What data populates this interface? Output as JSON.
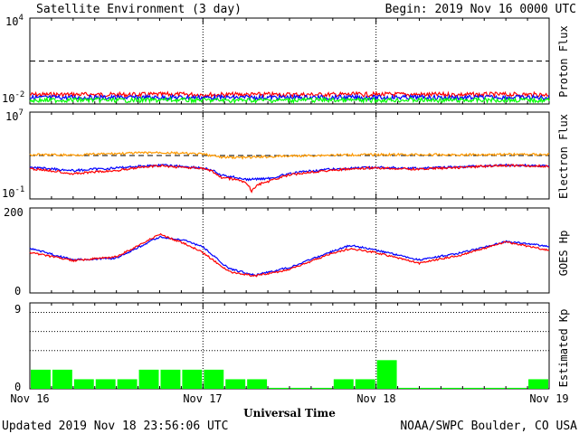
{
  "header": {
    "title": "Satellite Environment (3 day)",
    "begin": "Begin:  2019 Nov 16 0000 UTC"
  },
  "footer": {
    "updated": "Updated 2019 Nov 18 23:56:06 UTC",
    "credit": "NOAA/SWPC Boulder, CO USA",
    "xlabel": "Universal Time"
  },
  "x_ticks": [
    "Nov 16",
    "Nov 17",
    "Nov 18",
    "Nov 19"
  ],
  "colors": {
    "red": "#ff0000",
    "blue": "#0000ff",
    "green": "#00ff00",
    "orange": "#ff9900",
    "bars": "#00ff00",
    "frame": "#000000"
  },
  "chart_data": [
    {
      "type": "line",
      "ylabel": "Proton Flux",
      "ylim": [
        0.01,
        10000
      ],
      "log_scale": true,
      "y_ticks": {
        "top": "10",
        "top_exp": "4",
        "bottom": "10",
        "bottom_exp": "-2"
      },
      "threshold": 10,
      "series": [
        {
          "color": "red",
          "values": [
            0.045,
            0.046,
            0.044,
            0.047,
            0.045,
            0.046,
            0.045,
            0.047,
            0.046,
            0.045,
            0.046,
            0.045
          ]
        },
        {
          "color": "blue",
          "values": [
            0.028,
            0.029,
            0.028,
            0.029,
            0.028,
            0.029,
            0.029,
            0.028,
            0.029,
            0.028,
            0.029,
            0.028
          ]
        },
        {
          "color": "green",
          "values": [
            0.018,
            0.019,
            0.018,
            0.019,
            0.018,
            0.018,
            0.019,
            0.018,
            0.019,
            0.018,
            0.019,
            0.018
          ]
        }
      ],
      "x_days": [
        0,
        0.27,
        0.55,
        0.82,
        1.09,
        1.36,
        1.64,
        1.91,
        2.18,
        2.45,
        2.73,
        3.0
      ]
    },
    {
      "type": "line",
      "ylabel": "Electron Flux",
      "ylim": [
        0.1,
        10000000
      ],
      "log_scale": true,
      "y_ticks": {
        "top": "10",
        "top_exp": "7",
        "bottom": "10",
        "bottom_exp": "-1"
      },
      "threshold": 1000,
      "series": [
        {
          "color": "orange",
          "x": [
            0,
            0.25,
            0.5,
            0.75,
            1.0,
            1.1,
            1.25,
            1.5,
            1.75,
            2.0,
            2.25,
            2.5,
            2.75,
            3.0
          ],
          "values": [
            1200,
            1100,
            1500,
            1900,
            1300,
            700,
            650,
            900,
            1100,
            1200,
            1200,
            1150,
            1300,
            1250
          ]
        },
        {
          "color": "blue",
          "x": [
            0,
            0.25,
            0.5,
            0.75,
            1.0,
            1.1,
            1.25,
            1.4,
            1.5,
            1.75,
            2.0,
            2.25,
            2.5,
            2.75,
            3.0
          ],
          "values": [
            80,
            40,
            70,
            130,
            70,
            15,
            6,
            8,
            20,
            55,
            80,
            65,
            90,
            130,
            110
          ]
        },
        {
          "color": "red",
          "x": [
            0,
            0.25,
            0.5,
            0.75,
            1.0,
            1.1,
            1.25,
            1.28,
            1.4,
            1.5,
            1.75,
            2.0,
            2.25,
            2.5,
            2.75,
            3.0
          ],
          "values": [
            60,
            20,
            40,
            110,
            60,
            10,
            3,
            0.4,
            5,
            15,
            45,
            70,
            55,
            80,
            120,
            100
          ]
        }
      ]
    },
    {
      "type": "line",
      "ylabel": "GOES Hp",
      "ylim": [
        0,
        200
      ],
      "y_ticks": {
        "top": "200",
        "bottom": "0"
      },
      "series": [
        {
          "color": "blue",
          "x": [
            0,
            0.25,
            0.5,
            0.75,
            0.9,
            1.0,
            1.15,
            1.3,
            1.5,
            1.75,
            1.85,
            2.0,
            2.25,
            2.5,
            2.75,
            3.0
          ],
          "values": [
            105,
            78,
            82,
            132,
            123,
            108,
            57,
            42,
            60,
            98,
            112,
            101,
            78,
            95,
            121,
            110
          ]
        },
        {
          "color": "red",
          "x": [
            0,
            0.25,
            0.5,
            0.75,
            0.9,
            1.0,
            1.15,
            1.3,
            1.5,
            1.75,
            1.85,
            2.0,
            2.25,
            2.5,
            2.75,
            3.0
          ],
          "values": [
            95,
            76,
            85,
            138,
            115,
            95,
            50,
            40,
            55,
            94,
            104,
            95,
            70,
            90,
            120,
            100
          ]
        }
      ]
    },
    {
      "type": "bar",
      "ylabel": "Estimated Kp",
      "ylim": [
        0,
        9
      ],
      "y_ticks": {
        "top": "9",
        "bottom": "0"
      },
      "kp_grid": [
        4,
        6,
        8
      ],
      "bar_width_hours": 3,
      "values": [
        2,
        2,
        1,
        1,
        1,
        2,
        2,
        2,
        2,
        1,
        1,
        0.1,
        0.1,
        0.1,
        1,
        1,
        3,
        0.1,
        0.1,
        0.1,
        0.1,
        0.1,
        0.1,
        1
      ]
    }
  ]
}
